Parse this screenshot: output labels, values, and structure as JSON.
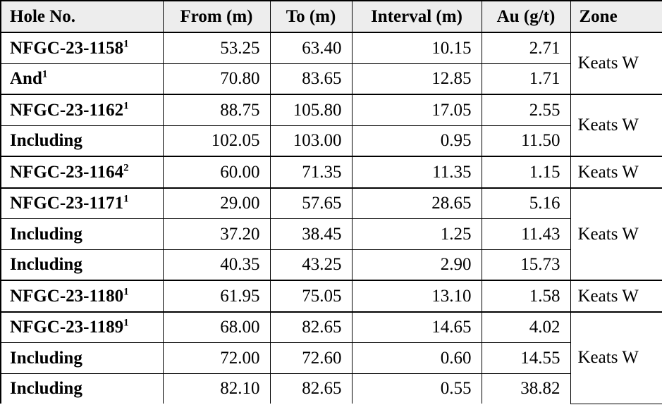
{
  "table": {
    "columns": [
      "Hole No.",
      "From (m)",
      "To (m)",
      "Interval (m)",
      "Au (g/t)",
      "Zone"
    ],
    "groups": [
      {
        "zone": "Keats W",
        "rows": [
          {
            "hole": "NFGC-23-1158",
            "sup": "1",
            "from": "53.25",
            "to": "63.40",
            "interval": "10.15",
            "au": "2.71"
          },
          {
            "hole": "And",
            "sup": "1",
            "from": "70.80",
            "to": "83.65",
            "interval": "12.85",
            "au": "1.71"
          }
        ]
      },
      {
        "zone": "Keats W",
        "rows": [
          {
            "hole": "NFGC-23-1162",
            "sup": "1",
            "from": "88.75",
            "to": "105.80",
            "interval": "17.05",
            "au": "2.55"
          },
          {
            "hole": "Including",
            "sup": "",
            "from": "102.05",
            "to": "103.00",
            "interval": "0.95",
            "au": "11.50"
          }
        ]
      },
      {
        "zone": "Keats W",
        "rows": [
          {
            "hole": "NFGC-23-1164",
            "sup": "2",
            "from": "60.00",
            "to": "71.35",
            "interval": "11.35",
            "au": "1.15"
          }
        ]
      },
      {
        "zone": "Keats W",
        "rows": [
          {
            "hole": "NFGC-23-1171",
            "sup": "1",
            "from": "29.00",
            "to": "57.65",
            "interval": "28.65",
            "au": "5.16"
          },
          {
            "hole": "Including",
            "sup": "",
            "from": "37.20",
            "to": "38.45",
            "interval": "1.25",
            "au": "11.43"
          },
          {
            "hole": "Including",
            "sup": "",
            "from": "40.35",
            "to": "43.25",
            "interval": "2.90",
            "au": "15.73"
          }
        ]
      },
      {
        "zone": "Keats W",
        "rows": [
          {
            "hole": "NFGC-23-1180",
            "sup": "1",
            "from": "61.95",
            "to": "75.05",
            "interval": "13.10",
            "au": "1.58"
          }
        ]
      },
      {
        "zone": "Keats W",
        "rows": [
          {
            "hole": "NFGC-23-1189",
            "sup": "1",
            "from": "68.00",
            "to": "82.65",
            "interval": "14.65",
            "au": "4.02"
          },
          {
            "hole": "Including",
            "sup": "",
            "from": "72.00",
            "to": "72.60",
            "interval": "0.60",
            "au": "14.55"
          },
          {
            "hole": "Including",
            "sup": "",
            "from": "82.10",
            "to": "82.65",
            "interval": "0.55",
            "au": "38.82"
          }
        ]
      }
    ]
  },
  "colors": {
    "header_bg": "#ededed",
    "border": "#000000",
    "background": "#ffffff",
    "text": "#000000"
  }
}
